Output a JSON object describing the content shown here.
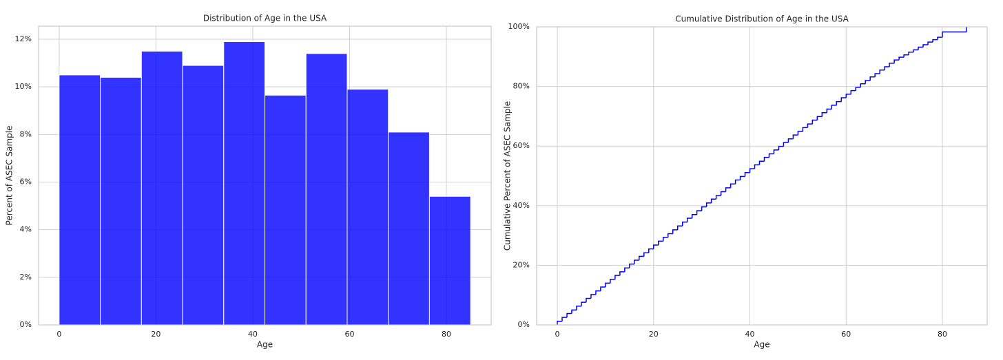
{
  "chart_data": [
    {
      "type": "histogram",
      "title": "Distribution of Age in the USA",
      "xlabel": "Age",
      "ylabel": "Percent of ASEC Sample",
      "bins": [
        0,
        8.5,
        17,
        25.5,
        34,
        42.5,
        51,
        59.5,
        68,
        76.5,
        85
      ],
      "values": [
        10.5,
        10.4,
        11.5,
        10.9,
        11.9,
        9.65,
        11.4,
        9.9,
        8.1,
        5.4
      ],
      "color": "#0000ff",
      "grid": true,
      "xlim": [
        -4.25,
        89.25
      ],
      "xticks": [
        0,
        20,
        40,
        60,
        80
      ],
      "ylim": [
        0,
        12.55
      ],
      "yticks": [
        {
          "value": 0,
          "label": "0%"
        },
        {
          "value": 2,
          "label": "2%"
        },
        {
          "value": 4,
          "label": "4%"
        },
        {
          "value": 6,
          "label": "6%"
        },
        {
          "value": 8,
          "label": "8%"
        },
        {
          "value": 10,
          "label": "10%"
        },
        {
          "value": 12,
          "label": "12%"
        }
      ]
    },
    {
      "type": "line",
      "drawstyle": "steps-post",
      "title": "Cumulative Distribution of Age in the USA",
      "xlabel": "Age",
      "ylabel": "Cumulative Percent of ASEC Sample",
      "x": [
        0,
        1,
        2,
        3,
        4,
        5,
        6,
        7,
        8,
        9,
        10,
        11,
        12,
        13,
        14,
        15,
        16,
        17,
        18,
        19,
        20,
        21,
        22,
        23,
        24,
        25,
        26,
        27,
        28,
        29,
        30,
        31,
        32,
        33,
        34,
        35,
        36,
        37,
        38,
        39,
        40,
        41,
        42,
        43,
        44,
        45,
        46,
        47,
        48,
        49,
        50,
        51,
        52,
        53,
        54,
        55,
        56,
        57,
        58,
        59,
        60,
        61,
        62,
        63,
        64,
        65,
        66,
        67,
        68,
        69,
        70,
        71,
        72,
        73,
        74,
        75,
        76,
        77,
        78,
        79,
        80,
        85
      ],
      "values": [
        1.2,
        2.5,
        3.8,
        5.0,
        6.3,
        7.6,
        8.9,
        10.2,
        11.4,
        12.7,
        14.0,
        15.3,
        16.6,
        17.8,
        19.1,
        20.4,
        21.7,
        23.0,
        24.2,
        25.5,
        26.8,
        28.1,
        29.4,
        30.6,
        31.9,
        33.2,
        34.5,
        35.8,
        37.0,
        38.3,
        39.6,
        40.9,
        42.2,
        43.4,
        44.7,
        46.0,
        47.3,
        48.6,
        49.8,
        51.1,
        52.4,
        53.7,
        54.9,
        56.2,
        57.4,
        58.7,
        59.9,
        61.2,
        62.4,
        63.7,
        64.9,
        66.2,
        67.4,
        68.7,
        69.9,
        71.2,
        72.4,
        73.7,
        74.9,
        76.2,
        77.4,
        78.6,
        79.7,
        80.9,
        82.0,
        83.2,
        84.3,
        85.5,
        86.6,
        87.8,
        88.9,
        89.8,
        90.6,
        91.5,
        92.3,
        93.2,
        94.0,
        94.9,
        95.7,
        96.5,
        98.3,
        100
      ],
      "color": "#0000ff",
      "grid": true,
      "xlim": [
        -4.3,
        89.3
      ],
      "xticks": [
        0,
        20,
        40,
        60,
        80
      ],
      "ylim": [
        0,
        100
      ],
      "yticks": [
        {
          "value": 0,
          "label": "0%"
        },
        {
          "value": 20,
          "label": "20%"
        },
        {
          "value": 40,
          "label": "40%"
        },
        {
          "value": 60,
          "label": "60%"
        },
        {
          "value": 80,
          "label": "80%"
        },
        {
          "value": 100,
          "label": "100%"
        }
      ]
    }
  ]
}
